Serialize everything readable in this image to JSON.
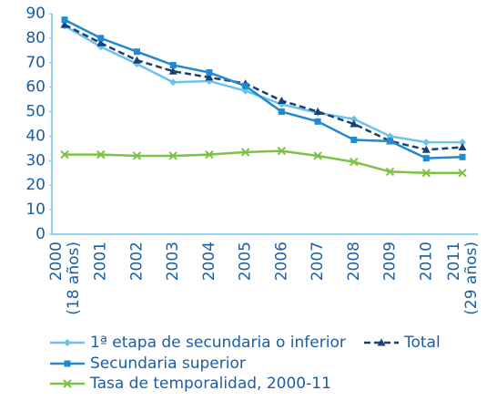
{
  "chart_data": {
    "type": "line",
    "categories": [
      "2000",
      "2001",
      "2002",
      "2003",
      "2004",
      "2005",
      "2006",
      "2007",
      "2008",
      "2009",
      "2010",
      "2011"
    ],
    "first_category_note": "(18 años)",
    "last_category_note": "(29 años)",
    "series": [
      {
        "name": "1ª etapa de secundaria o inferior",
        "color": "#6cc3ea",
        "marker": "diamond",
        "dash": false,
        "values": [
          85,
          76.5,
          69.5,
          62,
          62.5,
          58.5,
          53,
          49.5,
          47,
          40,
          37.5,
          37.5
        ]
      },
      {
        "name": "Total",
        "color": "#1c3f74",
        "marker": "triangle",
        "dash": true,
        "values": [
          85.5,
          78,
          71,
          66.5,
          64,
          61.5,
          54.5,
          50,
          45,
          38,
          34.5,
          35.5
        ]
      },
      {
        "name": "Secundaria superior",
        "color": "#2089d0",
        "marker": "square",
        "dash": false,
        "values": [
          87.5,
          80,
          74.5,
          69,
          66,
          60.5,
          50,
          46,
          38.5,
          38,
          31,
          31.5
        ]
      },
      {
        "name": "Tasa de temporalidad, 2000-11",
        "color": "#7cc243",
        "marker": "x",
        "dash": false,
        "values": [
          32.5,
          32.5,
          32,
          32,
          32.5,
          33.5,
          34,
          32,
          29.5,
          25.5,
          25,
          25
        ]
      }
    ],
    "ylim": [
      0,
      90
    ],
    "yticks": [
      0,
      10,
      20,
      30,
      40,
      50,
      60,
      70,
      80,
      90
    ],
    "grid": false
  }
}
